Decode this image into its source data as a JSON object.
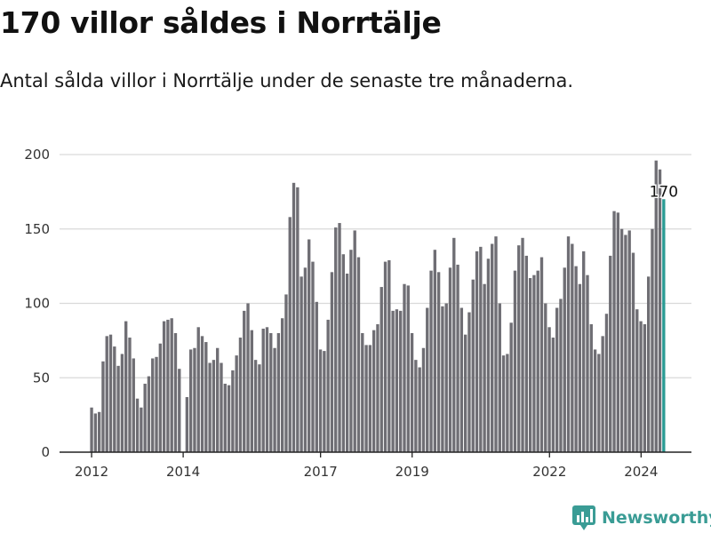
{
  "title": "170 villor såldes i Norrtälje",
  "subtitle": "Antal sålda villor i Norrtälje under de senaste tre månaderna.",
  "brand": {
    "name": "Newsworthy",
    "icon": "newsworthy-logo-icon"
  },
  "colors": {
    "bar": "#6f6e74",
    "highlight": "#2a9b94",
    "grid": "#d9d9d9",
    "brand": "#3a9c95"
  },
  "chart_data": {
    "type": "bar",
    "title": "170 villor såldes i Norrtälje",
    "xlabel": "",
    "ylabel": "",
    "ylim": [
      0,
      200
    ],
    "yticks": [
      0,
      50,
      100,
      150,
      200
    ],
    "xlim": [
      2011.3,
      2025.1
    ],
    "xticks": [
      2012,
      2014,
      2017,
      2019,
      2022,
      2024
    ],
    "xtick_labels": [
      "2012",
      "2014",
      "2017",
      "2019",
      "2022",
      "2024"
    ],
    "start": 2012.0,
    "step": 0.0833,
    "values": [
      30,
      26,
      27,
      61,
      78,
      79,
      71,
      58,
      66,
      88,
      77,
      63,
      36,
      30,
      46,
      51,
      63,
      64,
      73,
      88,
      89,
      90,
      80,
      56,
      0,
      37,
      69,
      70,
      84,
      78,
      74,
      60,
      62,
      70,
      60,
      46,
      45,
      55,
      65,
      77,
      95,
      100,
      82,
      62,
      59,
      83,
      84,
      80,
      70,
      80,
      90,
      106,
      158,
      181,
      178,
      118,
      124,
      143,
      128,
      101,
      69,
      68,
      89,
      121,
      151,
      154,
      133,
      120,
      136,
      149,
      131,
      80,
      72,
      72,
      82,
      86,
      111,
      128,
      129,
      95,
      96,
      95,
      113,
      112,
      80,
      62,
      57,
      70,
      97,
      122,
      136,
      121,
      98,
      100,
      124,
      144,
      126,
      97,
      79,
      94,
      116,
      135,
      138,
      113,
      130,
      140,
      145,
      100,
      65,
      66,
      87,
      122,
      139,
      144,
      132,
      117,
      119,
      122,
      131,
      100,
      84,
      77,
      97,
      103,
      124,
      145,
      140,
      125,
      113,
      135,
      119,
      86,
      69,
      66,
      78,
      93,
      132,
      162,
      161,
      150,
      146,
      149,
      134,
      96,
      88,
      86,
      118,
      150,
      196,
      190,
      170
    ],
    "highlight_index": 150,
    "highlight_label": "170"
  }
}
